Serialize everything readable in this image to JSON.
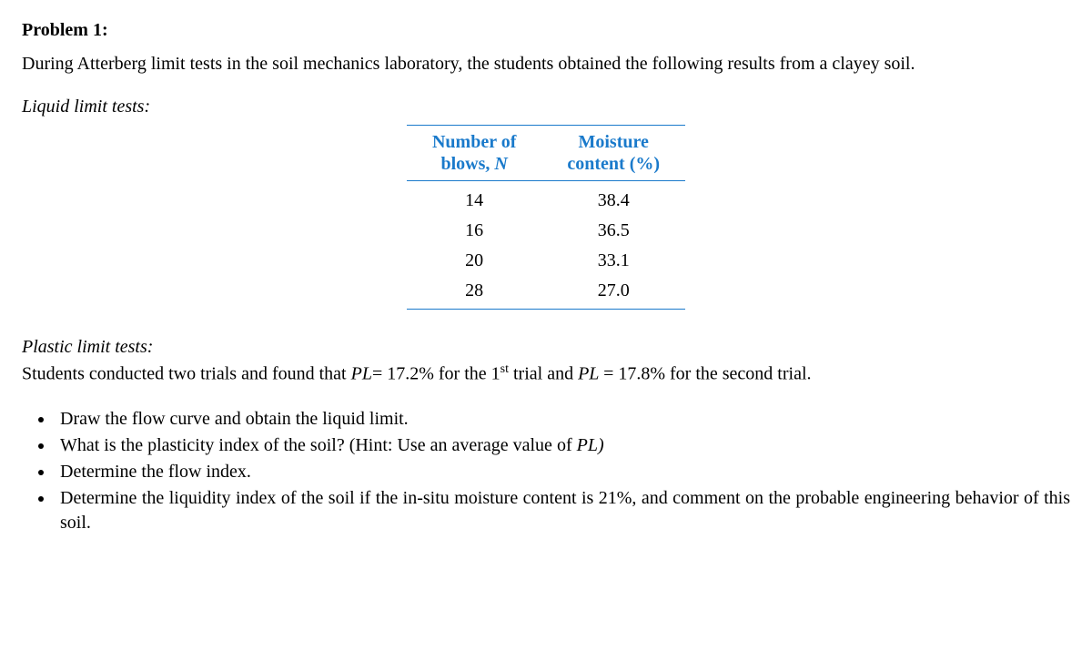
{
  "title": "Problem 1:",
  "intro": "During Atterberg limit tests in the soil mechanics laboratory, the students obtained the following results from a clayey soil.",
  "liquid_label": "Liquid limit tests:",
  "table": {
    "header_col1_line1": "Number of",
    "header_col1_line2_a": "blows, ",
    "header_col1_line2_b": "N",
    "header_col2_line1": "Moisture",
    "header_col2_line2": "content (%)",
    "rows": [
      {
        "n": "14",
        "m": "38.4"
      },
      {
        "n": "16",
        "m": "36.5"
      },
      {
        "n": "20",
        "m": "33.1"
      },
      {
        "n": "28",
        "m": "27.0"
      }
    ],
    "header_color": "#1a7acb",
    "border_color": "#1a7acb"
  },
  "plastic_label": "Plastic limit tests:",
  "plastic_text_1": "Students conducted two trials and found that ",
  "plastic_pl1_a": "PL",
  "plastic_pl1_b": "= 17.2% for the 1",
  "plastic_pl1_sup": "st",
  "plastic_pl1_c": " trial and ",
  "plastic_pl2_a": "PL ",
  "plastic_pl2_b": "= 17.8% for the second trial.",
  "tasks": {
    "t1": "Draw the flow curve and obtain the liquid limit.",
    "t2_a": "What is the plasticity index of the soil? (Hint: Use an average value of ",
    "t2_b": "PL)",
    "t3": "Determine the flow index.",
    "t4": "Determine the liquidity index of the soil if the in-situ moisture content is 21%, and comment on the probable engineering behavior of this soil."
  }
}
